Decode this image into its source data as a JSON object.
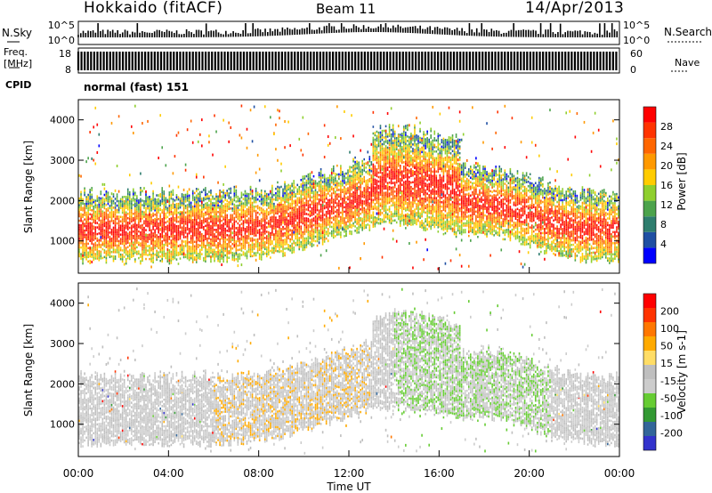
{
  "header": {
    "station": "Hokkaido (fitACF)",
    "beam": "Beam 11",
    "date": "14/Apr/2013"
  },
  "side_labels": {
    "nsky": "N.Sky",
    "freq_line1": "Freq.",
    "freq_line2": "[MHz]",
    "cpid": "CPID",
    "nsearch": "N.Search",
    "nave": "Nave"
  },
  "cpid_text": "normal (fast) 151",
  "colors": {
    "power_scale": [
      "#0000ff",
      "#1f4fa3",
      "#2e7d6e",
      "#4ca34c",
      "#8fcf2e",
      "#ffcc00",
      "#ff9900",
      "#ff6600",
      "#ff3300",
      "#ff0000"
    ],
    "velocity_scale": [
      "#ff0000",
      "#ff3300",
      "#ff7700",
      "#ffaa00",
      "#ffdd66",
      "#bfbfbf",
      "#cccccc",
      "#66cc33",
      "#339933",
      "#336699",
      "#3333cc"
    ]
  },
  "chart_data": [
    {
      "type": "line",
      "panel": "noise",
      "left_ticks": [
        "10^5",
        "10^0"
      ],
      "right_ticks": [
        "10^5",
        "10^0"
      ]
    },
    {
      "type": "bar",
      "panel": "frequency",
      "left_ticks": [
        "18",
        "8"
      ],
      "right_ticks": [
        "60",
        "0"
      ]
    },
    {
      "type": "heatmap",
      "panel": "power",
      "ylabel": "Slant Range [km]",
      "ylim": [
        200,
        4500
      ],
      "yticks": [
        1000,
        2000,
        3000,
        4000
      ],
      "colorbar_label": "Power [dB]",
      "colorbar_ticks": [
        "4",
        "8",
        "12",
        "16",
        "20",
        "24",
        "28"
      ],
      "bands": [
        {
          "t": [
            0,
            24
          ],
          "lo": 800,
          "hi": 2400,
          "level": 0.72
        },
        {
          "t": [
            7,
            10
          ],
          "lo": 1500,
          "hi": 3000,
          "level": 0.85
        },
        {
          "t": [
            12,
            17
          ],
          "lo": 1500,
          "hi": 3200,
          "level": 0.8
        },
        {
          "t": [
            13,
            17
          ],
          "lo": 3000,
          "hi": 3900,
          "level": 0.5
        },
        {
          "t": [
            17.5,
            20
          ],
          "lo": 1500,
          "hi": 2800,
          "level": 0.85
        },
        {
          "t": [
            20,
            24
          ],
          "lo": 900,
          "hi": 2000,
          "level": 0.7
        }
      ]
    },
    {
      "type": "heatmap",
      "panel": "velocity",
      "ylabel": "Slant Range [km]",
      "ylim": [
        200,
        4500
      ],
      "yticks": [
        1000,
        2000,
        3000,
        4000
      ],
      "colorbar_label": "Velocity [m s-1]",
      "colorbar_ticks": [
        "200",
        "100",
        "50",
        "15",
        "-15",
        "-50",
        "-100",
        "-200"
      ],
      "xlabel": "Time UT",
      "xticks": [
        "00:00",
        "04:00",
        "08:00",
        "12:00",
        "16:00",
        "20:00",
        "00:00"
      ],
      "xlim": [
        0,
        24
      ]
    }
  ]
}
